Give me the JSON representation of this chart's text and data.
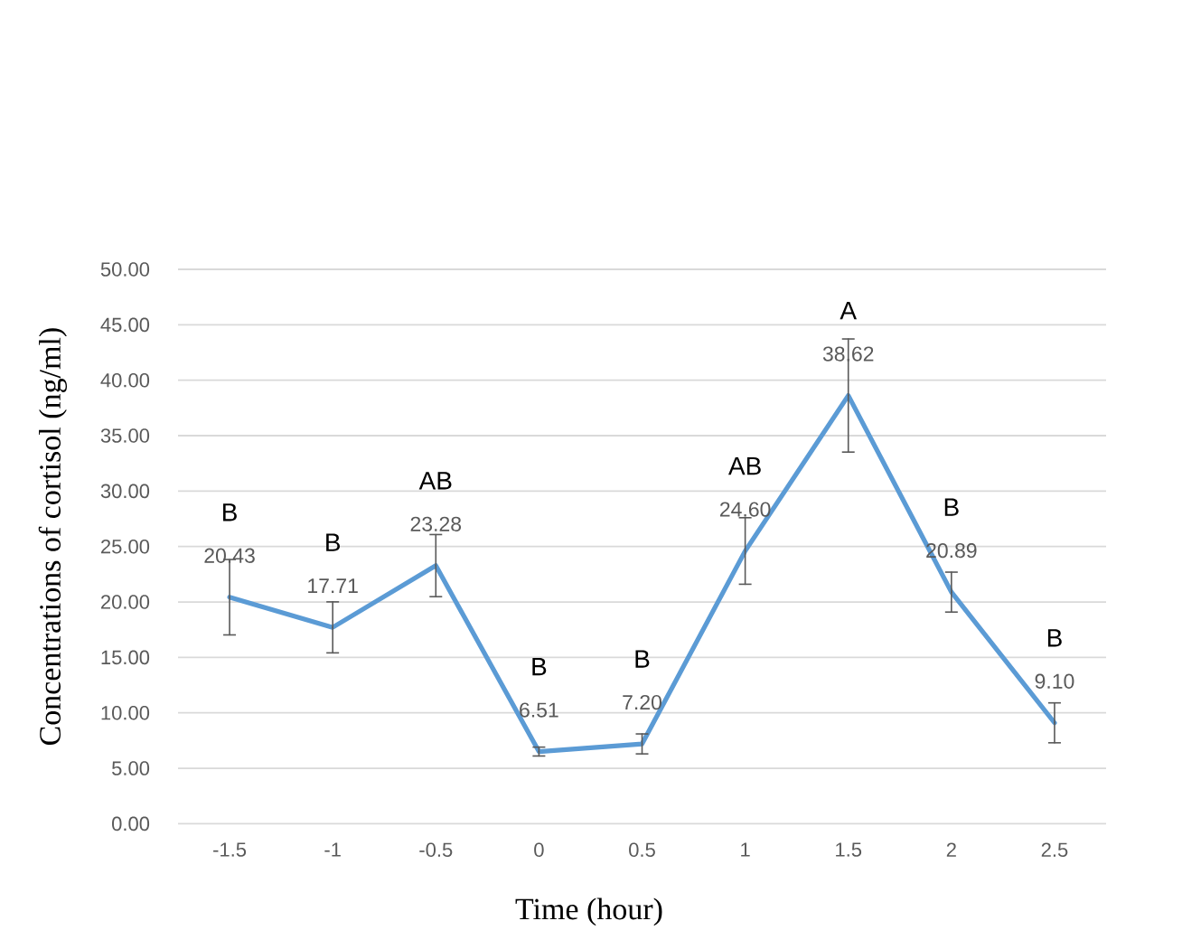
{
  "chart_data": {
    "type": "line",
    "xlabel": "Time (hour)",
    "ylabel": "Concentrations of cortisol (ng/ml)",
    "categories": [
      "-1.5",
      "-1",
      "-0.5",
      "0",
      "0.5",
      "1",
      "1.5",
      "2",
      "2.5"
    ],
    "values": [
      20.43,
      17.71,
      23.28,
      6.51,
      7.2,
      24.6,
      38.62,
      20.89,
      9.1
    ],
    "errors": [
      3.4,
      2.3,
      2.8,
      0.4,
      0.9,
      3.0,
      5.1,
      1.8,
      1.8
    ],
    "value_labels": [
      "20.43",
      "17.71",
      "23.28",
      "6.51",
      "7.20",
      "24.60",
      "38.62",
      "20.89",
      "9.10"
    ],
    "color": "#5b9bd5",
    "ylim": [
      0,
      50
    ],
    "yticks": [
      {
        "value": 0,
        "label": "0.00"
      },
      {
        "value": 5,
        "label": "5.00"
      },
      {
        "value": 10,
        "label": "10.00"
      },
      {
        "value": 15,
        "label": "15.00"
      },
      {
        "value": 20,
        "label": "20.00"
      },
      {
        "value": 25,
        "label": "25.00"
      },
      {
        "value": 30,
        "label": "30.00"
      },
      {
        "value": 35,
        "label": "35.00"
      },
      {
        "value": 40,
        "label": "40.00"
      },
      {
        "value": 45,
        "label": "45.00"
      },
      {
        "value": 50,
        "label": "50.00"
      }
    ],
    "grid": "y",
    "marker": "none",
    "line_style": "solid",
    "annotations": [
      "B",
      "B",
      "AB",
      "B",
      "B",
      "AB",
      "A",
      "B",
      "B"
    ]
  }
}
